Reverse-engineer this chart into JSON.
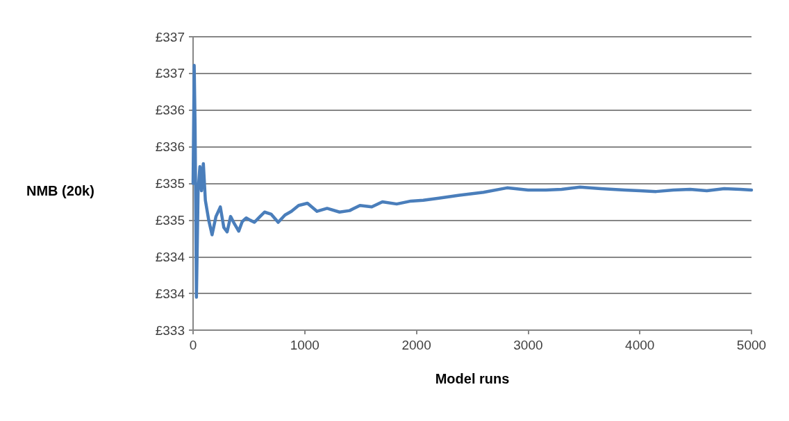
{
  "chart_data": {
    "type": "line",
    "xlabel": "Model runs",
    "ylabel": "NMB (20k)",
    "x": [
      0,
      10,
      18,
      30,
      45,
      61,
      75,
      92,
      110,
      140,
      170,
      205,
      244,
      275,
      305,
      336,
      370,
      409,
      440,
      476,
      510,
      549,
      600,
      640,
      700,
      762,
      823,
      880,
      945,
      1024,
      1110,
      1200,
      1311,
      1402,
      1494,
      1600,
      1695,
      1823,
      1950,
      2061,
      2200,
      2384,
      2600,
      2811,
      3000,
      3159,
      3300,
      3465,
      3650,
      3866,
      4000,
      4146,
      4300,
      4451,
      4600,
      4756,
      4900,
      5000
    ],
    "series": [
      {
        "color": "#4a7ebb",
        "values": [
          335.0,
          336.61,
          335.77,
          333.45,
          334.9,
          335.23,
          334.9,
          335.27,
          334.77,
          334.5,
          334.3,
          334.55,
          334.68,
          334.4,
          334.34,
          334.55,
          334.45,
          334.35,
          334.48,
          334.53,
          334.5,
          334.47,
          334.55,
          334.61,
          334.58,
          334.47,
          334.57,
          334.62,
          334.7,
          334.73,
          334.62,
          334.66,
          334.61,
          334.63,
          334.7,
          334.68,
          334.75,
          334.72,
          334.76,
          334.77,
          334.8,
          334.84,
          334.88,
          334.94,
          334.91,
          334.91,
          334.92,
          334.95,
          334.93,
          334.91,
          334.9,
          334.89,
          334.91,
          334.92,
          334.9,
          334.93,
          334.92,
          334.91
        ]
      }
    ],
    "xlim": [
      0,
      5000
    ],
    "xticks": [
      0,
      1000,
      2000,
      3000,
      4000,
      5000
    ],
    "ylim": [
      333,
      337
    ],
    "yticks": [
      {
        "value": 333,
        "label": "£333"
      },
      {
        "value": 333.5,
        "label": "£334"
      },
      {
        "value": 334,
        "label": "£334"
      },
      {
        "value": 334.5,
        "label": "£335"
      },
      {
        "value": 335,
        "label": "£335"
      },
      {
        "value": 335.5,
        "label": "£336"
      },
      {
        "value": 336,
        "label": "£336"
      },
      {
        "value": 336.5,
        "label": "£337"
      },
      {
        "value": 337,
        "label": "£337"
      }
    ],
    "grid": "y",
    "marker": "none",
    "line_style": "solid"
  }
}
